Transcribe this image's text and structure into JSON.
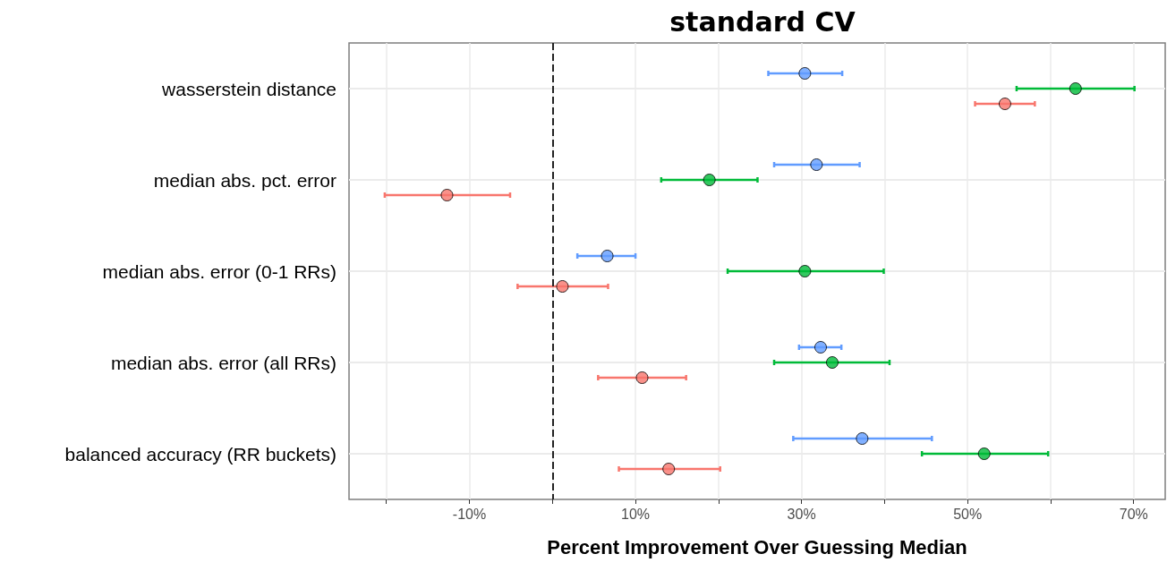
{
  "chart_data": {
    "type": "scatter",
    "title": "standard CV",
    "xlabel": "Percent Improvement Over Guessing Median",
    "categories": [
      "wasserstein distance",
      "median abs. pct. error",
      "median abs. error (0-1 RRs)",
      "median abs. error (all RRs)",
      "balanced accuracy (RR buckets)"
    ],
    "orientation": "horizontal",
    "series": [
      {
        "color": "#619cff",
        "values": [
          30.4,
          31.8,
          6.6,
          32.3,
          37.3
        ],
        "errors": [
          [
            26.0,
            34.9
          ],
          [
            26.7,
            37.0
          ],
          [
            3.0,
            10.0
          ],
          [
            29.7,
            34.8
          ],
          [
            29.0,
            45.7
          ]
        ]
      },
      {
        "color": "#00ba38",
        "values": [
          63.0,
          18.9,
          30.4,
          33.7,
          52.0
        ],
        "errors": [
          [
            55.9,
            70.1
          ],
          [
            13.1,
            24.7
          ],
          [
            21.1,
            39.9
          ],
          [
            26.7,
            40.6
          ],
          [
            44.5,
            59.7
          ]
        ]
      },
      {
        "color": "#f8766d",
        "values": [
          54.5,
          -12.7,
          1.2,
          10.8,
          14.0
        ],
        "errors": [
          [
            50.9,
            58.1
          ],
          [
            -20.2,
            -5.1
          ],
          [
            -4.2,
            6.7
          ],
          [
            5.5,
            16.1
          ],
          [
            8.0,
            20.2
          ]
        ]
      }
    ],
    "xlim": [
      -24.5,
      73.8
    ],
    "xticks": [
      {
        "value": -20,
        "label": null
      },
      {
        "value": -10,
        "label": "-10%"
      },
      {
        "value": 0,
        "label": null
      },
      {
        "value": 10,
        "label": "10%"
      },
      {
        "value": 20,
        "label": null
      },
      {
        "value": 30,
        "label": "30%"
      },
      {
        "value": 40,
        "label": null
      },
      {
        "value": 50,
        "label": "50%"
      },
      {
        "value": 60,
        "label": null
      },
      {
        "value": 70,
        "label": "70%"
      }
    ],
    "ref_lines": [
      {
        "axis": "x",
        "value": 0,
        "color": "#222222",
        "line_style": "dashed"
      }
    ],
    "grid": true,
    "marker": "circle"
  }
}
